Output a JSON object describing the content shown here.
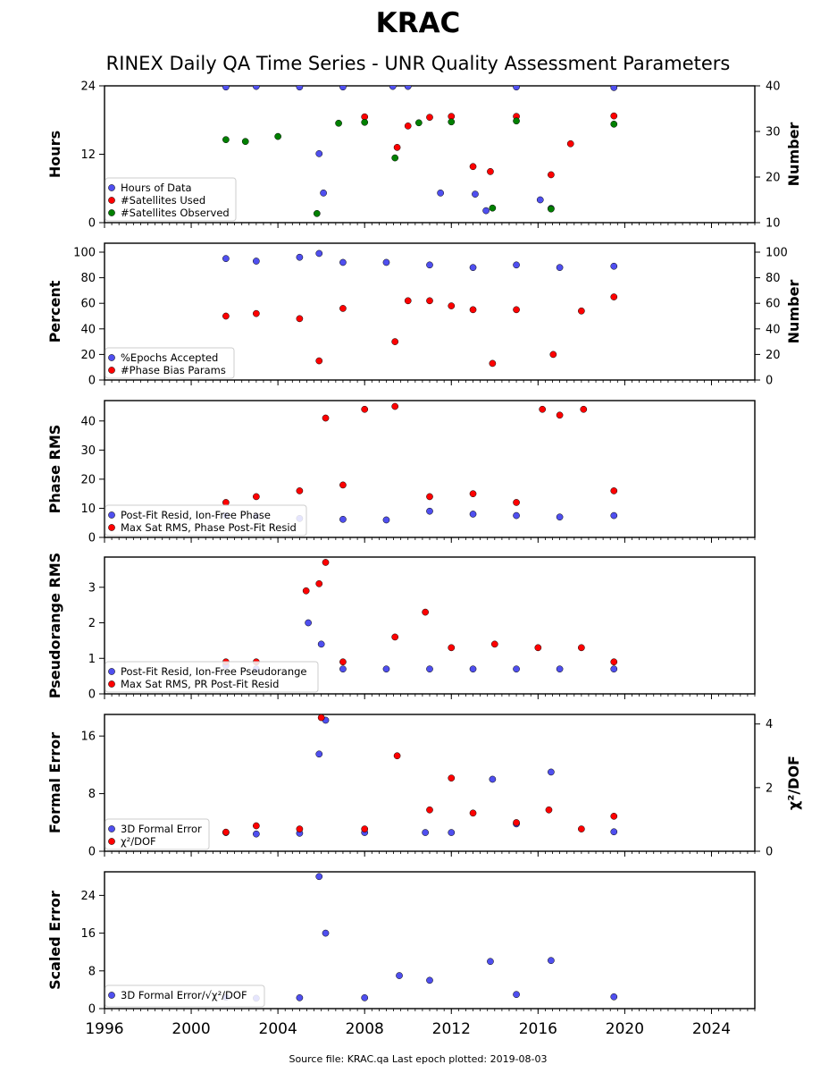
{
  "title": "KRAC",
  "subtitle": "RINEX Daily QA Time Series - UNR Quality Assessment Parameters",
  "footer": "Source file: KRAC.qa Last epoch plotted: 2019-08-03",
  "colors": {
    "blue": "#4f4fef",
    "red": "#ff0000",
    "green": "#008000"
  },
  "chart_data": [
    {
      "type": "scatter",
      "ylabel": "Hours",
      "ylabel_right": "Number",
      "xlim": [
        1996,
        2026
      ],
      "ylim": [
        0,
        24
      ],
      "ylim_right": [
        10,
        40
      ],
      "yticks": [
        0,
        12,
        24
      ],
      "yticks_right": [
        10,
        20,
        30,
        40
      ],
      "legend": "bottom-left",
      "series": [
        {
          "name": "Hours of Data",
          "axis": "left",
          "color": "blue",
          "x": [
            2001.6,
            2003,
            2005,
            2005.9,
            2006.1,
            2007,
            2009.3,
            2010,
            2011.5,
            2013.1,
            2013.6,
            2015,
            2016.1,
            2016.6,
            2019.5
          ],
          "y": [
            23.8,
            23.9,
            23.8,
            12.1,
            5.2,
            23.8,
            23.9,
            23.9,
            5.2,
            5.0,
            2.1,
            23.8,
            4.0,
            2.5,
            23.7
          ]
        },
        {
          "name": "#Satellites Used",
          "axis": "right",
          "color": "red",
          "x": [
            2008,
            2009.5,
            2010,
            2011,
            2012,
            2013,
            2013.8,
            2015,
            2016.6,
            2017.5,
            2019.5
          ],
          "y": [
            33.2,
            26.5,
            31.2,
            33.1,
            33.3,
            22.3,
            21.2,
            33.3,
            20.5,
            27.3,
            33.4
          ]
        },
        {
          "name": "#Satellites Observed",
          "axis": "right",
          "color": "green",
          "x": [
            2001.6,
            2002.5,
            2004,
            2005.8,
            2006.8,
            2008,
            2009.4,
            2010.5,
            2012,
            2013.9,
            2015,
            2016.6,
            2019.5
          ],
          "y": [
            28.2,
            27.8,
            28.9,
            12.0,
            31.8,
            32.0,
            24.2,
            31.9,
            32.1,
            13.2,
            32.3,
            13.0,
            31.6
          ]
        }
      ]
    },
    {
      "type": "scatter",
      "ylabel": "Percent",
      "ylabel_right": "Number",
      "xlim": [
        1996,
        2026
      ],
      "ylim": [
        0,
        107
      ],
      "yticks": [
        0,
        20,
        40,
        60,
        80,
        100
      ],
      "yticks_right": [
        0,
        20,
        40,
        60,
        80,
        100
      ],
      "legend": "bottom-left",
      "series": [
        {
          "name": "%Epochs Accepted",
          "axis": "left",
          "color": "blue",
          "x": [
            2001.6,
            2003,
            2005,
            2005.9,
            2007,
            2009,
            2011,
            2013,
            2015,
            2017,
            2019.5
          ],
          "y": [
            95,
            93,
            96,
            99,
            92,
            92,
            90,
            88,
            90,
            88,
            89
          ]
        },
        {
          "name": "#Phase Bias Params",
          "axis": "right",
          "color": "red",
          "x": [
            2001.6,
            2003,
            2005,
            2005.9,
            2007,
            2009.4,
            2010,
            2011,
            2012,
            2013,
            2013.9,
            2015,
            2016.7,
            2018,
            2019.5
          ],
          "y": [
            50,
            52,
            48,
            15,
            56,
            30,
            62,
            62,
            58,
            55,
            13,
            55,
            20,
            54,
            65
          ]
        }
      ]
    },
    {
      "type": "scatter",
      "ylabel": "Phase RMS",
      "xlim": [
        1996,
        2026
      ],
      "ylim": [
        0,
        47
      ],
      "yticks": [
        0,
        10,
        20,
        30,
        40
      ],
      "legend": "bottom-left",
      "series": [
        {
          "name": "Post-Fit Resid, Ion-Free Phase",
          "color": "blue",
          "x": [
            2001.6,
            2003,
            2005,
            2007,
            2009,
            2011,
            2013,
            2015,
            2017,
            2019.5
          ],
          "y": [
            7.5,
            7.2,
            6.5,
            6.2,
            6.0,
            9.0,
            8.0,
            7.5,
            7.0,
            7.5
          ]
        },
        {
          "name": "Max Sat RMS, Phase Post-Fit Resid",
          "color": "red",
          "x": [
            2001.6,
            2003,
            2005,
            2006.2,
            2007,
            2008,
            2009.4,
            2011,
            2013,
            2015,
            2016.2,
            2017,
            2018.1,
            2019.5
          ],
          "y": [
            12,
            14,
            16,
            41,
            18,
            44,
            45,
            14,
            15,
            12,
            44,
            42,
            44,
            16
          ]
        }
      ]
    },
    {
      "type": "scatter",
      "ylabel": "Pseudorange RMS",
      "xlim": [
        1996,
        2026
      ],
      "ylim": [
        0,
        3.85
      ],
      "yticks": [
        0,
        1,
        2,
        3
      ],
      "legend": "bottom-left",
      "series": [
        {
          "name": "Post-Fit Resid, Ion-Free Pseudorange",
          "color": "blue",
          "x": [
            2001.6,
            2003,
            2005.4,
            2006,
            2007,
            2009,
            2011,
            2013,
            2015,
            2017,
            2019.5
          ],
          "y": [
            0.8,
            0.7,
            2.0,
            1.4,
            0.7,
            0.7,
            0.7,
            0.7,
            0.7,
            0.7,
            0.7
          ]
        },
        {
          "name": "Max Sat RMS, PR Post-Fit Resid",
          "color": "red",
          "x": [
            2001.6,
            2003,
            2005.3,
            2005.9,
            2006.2,
            2007,
            2009.4,
            2010.8,
            2012,
            2014,
            2016,
            2018,
            2019.5
          ],
          "y": [
            0.9,
            0.9,
            2.9,
            3.1,
            3.7,
            0.9,
            1.6,
            2.3,
            1.3,
            1.4,
            1.3,
            1.3,
            0.9
          ]
        }
      ]
    },
    {
      "type": "scatter",
      "ylabel": "Formal Error",
      "ylabel_right": "χ²/DOF",
      "xlim": [
        1996,
        2026
      ],
      "ylim": [
        0,
        19
      ],
      "ylim_right": [
        0,
        4.3
      ],
      "yticks": [
        0,
        8,
        16
      ],
      "yticks_right": [
        0,
        2,
        4
      ],
      "legend": "bottom-left",
      "series": [
        {
          "name": "3D Formal Error",
          "axis": "left",
          "color": "blue",
          "x": [
            2001.6,
            2003,
            2005,
            2005.9,
            2006.2,
            2008,
            2010.8,
            2012,
            2013.9,
            2015,
            2016.6,
            2019.5
          ],
          "y": [
            2.6,
            2.4,
            2.5,
            13.5,
            18.2,
            2.6,
            2.6,
            2.6,
            10.0,
            3.8,
            11.0,
            2.7
          ]
        },
        {
          "name": "χ²/DOF",
          "axis": "right",
          "color": "red",
          "x": [
            2001.6,
            2003,
            2005,
            2006,
            2008,
            2009.5,
            2011,
            2012,
            2013,
            2015,
            2016.5,
            2018,
            2019.5
          ],
          "y": [
            0.6,
            0.8,
            0.7,
            4.2,
            0.7,
            3.0,
            1.3,
            2.3,
            1.2,
            0.9,
            1.3,
            0.7,
            1.1
          ]
        }
      ]
    },
    {
      "type": "scatter",
      "ylabel": "Scaled Error",
      "xlim": [
        1996,
        2026
      ],
      "ylim": [
        0,
        29
      ],
      "yticks": [
        0,
        8,
        16,
        24
      ],
      "xticks": [
        1996,
        2000,
        2004,
        2008,
        2012,
        2016,
        2020,
        2024
      ],
      "legend": "bottom-left",
      "series": [
        {
          "name": "3D Formal Error/√χ²/DOF",
          "color": "blue",
          "x": [
            2001.6,
            2003,
            2005,
            2005.9,
            2006.2,
            2008,
            2009.6,
            2011,
            2013.8,
            2015,
            2016.6,
            2019.5
          ],
          "y": [
            2.4,
            2.2,
            2.3,
            28.0,
            16.0,
            2.3,
            7.0,
            6.0,
            10.0,
            3.0,
            10.2,
            2.5
          ]
        }
      ]
    }
  ]
}
